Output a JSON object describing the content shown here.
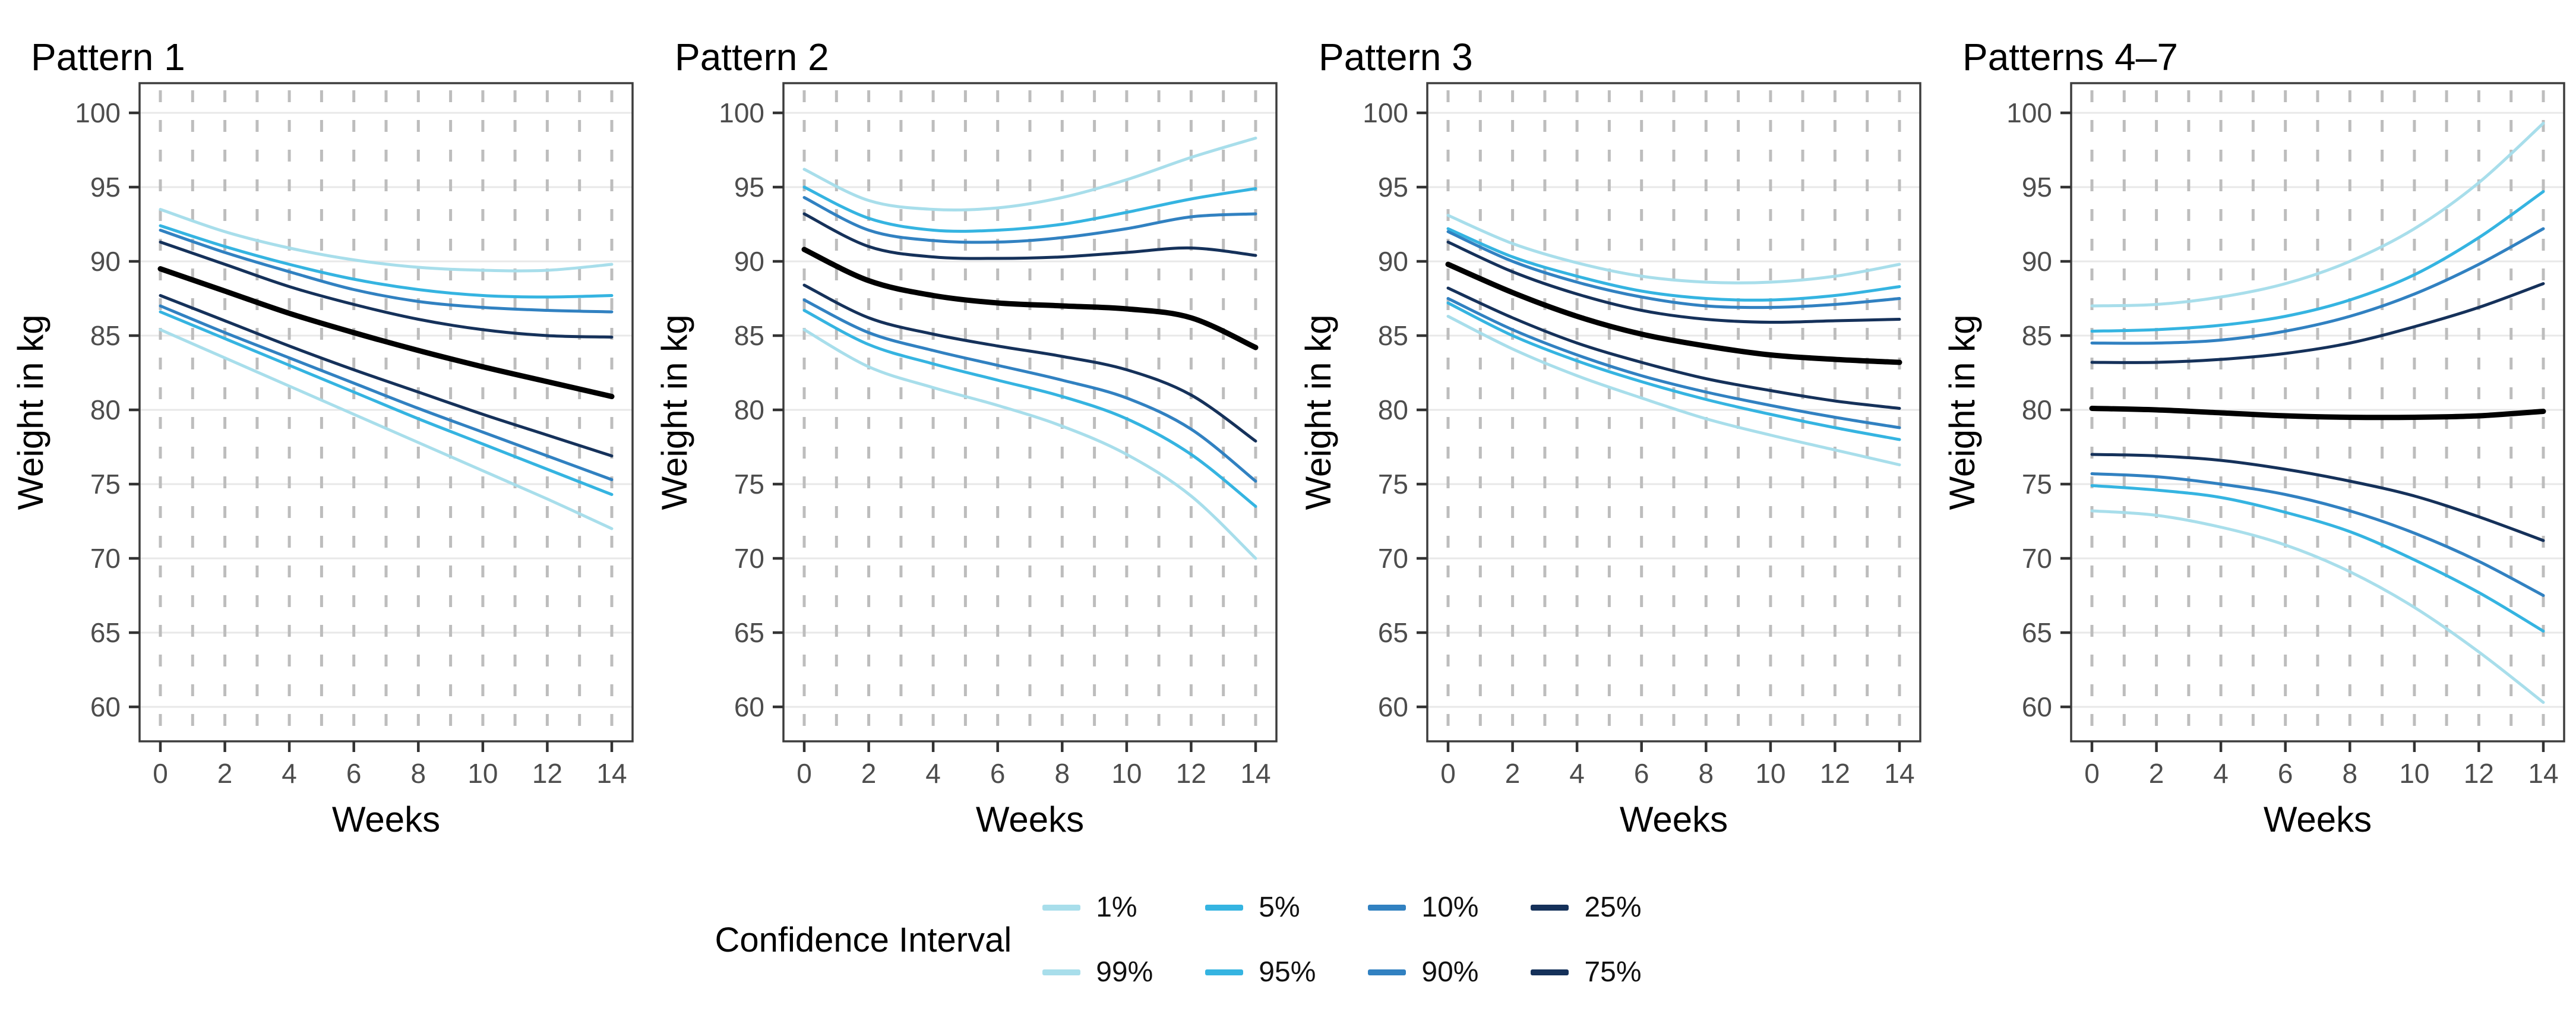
{
  "page": {
    "background": "#ffffff"
  },
  "legend": {
    "title": "Confidence Interval",
    "items": [
      {
        "label": "1%",
        "color": "ci_1_99"
      },
      {
        "label": "5%",
        "color": "ci_5_95"
      },
      {
        "label": "10%",
        "color": "ci_10_90"
      },
      {
        "label": "25%",
        "color": "ci_25_75"
      },
      {
        "label": "99%",
        "color": "ci_1_99"
      },
      {
        "label": "95%",
        "color": "ci_5_95"
      },
      {
        "label": "90%",
        "color": "ci_10_90"
      },
      {
        "label": "75%",
        "color": "ci_25_75"
      }
    ]
  },
  "chart_data": {
    "type": "line",
    "title": "",
    "xlabel": "Weeks",
    "ylabel": "Weight in kg",
    "x": [
      0,
      2,
      4,
      6,
      8,
      10,
      12,
      14
    ],
    "xlim": [
      0,
      14
    ],
    "ylim": [
      60,
      100
    ],
    "x_ticks": [
      0,
      2,
      4,
      6,
      8,
      10,
      12,
      14
    ],
    "y_ticks": [
      60,
      65,
      70,
      75,
      80,
      85,
      90,
      95,
      100
    ],
    "grid": {
      "horizontal_color": "#e8e8e8",
      "vertical_color": "#bdbdbd",
      "vertical_style": "dashed",
      "vertical_at_every_week": true
    },
    "axis": {
      "border_color": "#3d3d3d",
      "tick_color": "#333333",
      "tick_label_color": "#4d4d4d"
    },
    "palette": {
      "ci_1_99": "#a8deeb",
      "ci_5_95": "#35b4e1",
      "ci_10_90": "#3181c1",
      "ci_25_75": "#15315a",
      "median": "#000000"
    },
    "legend_position": "bottom",
    "panels": [
      {
        "title": "Pattern 1",
        "series": [
          {
            "name": "99%",
            "color": "ci_1_99",
            "values": [
              93.5,
              92.0,
              90.9,
              90.1,
              89.6,
              89.4,
              89.4,
              89.8
            ]
          },
          {
            "name": "95%",
            "color": "ci_5_95",
            "values": [
              92.4,
              91.0,
              89.8,
              88.8,
              88.1,
              87.7,
              87.6,
              87.7
            ]
          },
          {
            "name": "90%",
            "color": "ci_10_90",
            "values": [
              92.1,
              90.6,
              89.3,
              88.1,
              87.3,
              86.9,
              86.7,
              86.6
            ]
          },
          {
            "name": "75%",
            "color": "ci_25_75",
            "values": [
              91.3,
              89.8,
              88.3,
              87.1,
              86.1,
              85.4,
              85.0,
              84.9
            ]
          },
          {
            "name": "25%",
            "color": "ci_25_75",
            "values": [
              87.7,
              86.0,
              84.3,
              82.7,
              81.2,
              79.7,
              78.3,
              76.9
            ]
          },
          {
            "name": "10%",
            "color": "ci_10_90",
            "values": [
              87.0,
              85.2,
              83.5,
              81.8,
              80.1,
              78.5,
              76.9,
              75.3
            ]
          },
          {
            "name": "5%",
            "color": "ci_5_95",
            "values": [
              86.6,
              84.8,
              83.0,
              81.2,
              79.4,
              77.7,
              76.0,
              74.3
            ]
          },
          {
            "name": "1%",
            "color": "ci_1_99",
            "values": [
              85.4,
              83.5,
              81.6,
              79.7,
              77.8,
              75.9,
              74.0,
              72.0
            ]
          },
          {
            "name": "median",
            "color": "median",
            "values": [
              89.5,
              88.0,
              86.5,
              85.2,
              84.0,
              82.9,
              81.9,
              80.9
            ]
          }
        ]
      },
      {
        "title": "Pattern 2",
        "series": [
          {
            "name": "99%",
            "color": "ci_1_99",
            "values": [
              96.2,
              94.1,
              93.5,
              93.6,
              94.3,
              95.5,
              97.0,
              98.3
            ]
          },
          {
            "name": "95%",
            "color": "ci_5_95",
            "values": [
              95.0,
              92.9,
              92.1,
              92.1,
              92.5,
              93.3,
              94.2,
              94.9
            ]
          },
          {
            "name": "90%",
            "color": "ci_10_90",
            "values": [
              94.3,
              92.1,
              91.4,
              91.3,
              91.6,
              92.2,
              93.0,
              93.2
            ]
          },
          {
            "name": "75%",
            "color": "ci_25_75",
            "values": [
              93.2,
              91.0,
              90.3,
              90.2,
              90.3,
              90.6,
              90.9,
              90.4
            ]
          },
          {
            "name": "25%",
            "color": "ci_25_75",
            "values": [
              88.4,
              86.2,
              85.1,
              84.3,
              83.6,
              82.7,
              81.0,
              77.9
            ]
          },
          {
            "name": "10%",
            "color": "ci_10_90",
            "values": [
              87.4,
              85.2,
              84.0,
              83.0,
              82.0,
              80.8,
              78.7,
              75.2
            ]
          },
          {
            "name": "5%",
            "color": "ci_5_95",
            "values": [
              86.7,
              84.4,
              83.1,
              82.0,
              80.9,
              79.4,
              77.0,
              73.5
            ]
          },
          {
            "name": "1%",
            "color": "ci_1_99",
            "values": [
              85.4,
              82.9,
              81.5,
              80.3,
              78.9,
              77.0,
              74.2,
              70.0
            ]
          },
          {
            "name": "median",
            "color": "median",
            "values": [
              90.8,
              88.7,
              87.7,
              87.2,
              87.0,
              86.8,
              86.2,
              84.2
            ]
          }
        ]
      },
      {
        "title": "Pattern 3",
        "series": [
          {
            "name": "99%",
            "color": "ci_1_99",
            "values": [
              93.1,
              91.2,
              89.9,
              89.0,
              88.6,
              88.6,
              89.0,
              89.8
            ]
          },
          {
            "name": "95%",
            "color": "ci_5_95",
            "values": [
              92.2,
              90.3,
              89.0,
              88.0,
              87.5,
              87.4,
              87.7,
              88.3
            ]
          },
          {
            "name": "90%",
            "color": "ci_10_90",
            "values": [
              92.0,
              90.0,
              88.6,
              87.6,
              87.0,
              86.9,
              87.1,
              87.5
            ]
          },
          {
            "name": "75%",
            "color": "ci_25_75",
            "values": [
              91.3,
              89.3,
              87.8,
              86.7,
              86.1,
              85.9,
              86.0,
              86.1
            ]
          },
          {
            "name": "25%",
            "color": "ci_25_75",
            "values": [
              88.2,
              86.2,
              84.5,
              83.2,
              82.1,
              81.3,
              80.6,
              80.1
            ]
          },
          {
            "name": "10%",
            "color": "ci_10_90",
            "values": [
              87.5,
              85.4,
              83.7,
              82.3,
              81.2,
              80.3,
              79.5,
              78.8
            ]
          },
          {
            "name": "5%",
            "color": "ci_5_95",
            "values": [
              87.2,
              85.0,
              83.3,
              81.9,
              80.7,
              79.7,
              78.8,
              78.0
            ]
          },
          {
            "name": "1%",
            "color": "ci_1_99",
            "values": [
              86.3,
              84.1,
              82.3,
              80.8,
              79.4,
              78.3,
              77.3,
              76.3
            ]
          },
          {
            "name": "median",
            "color": "median",
            "values": [
              89.8,
              87.9,
              86.3,
              85.1,
              84.3,
              83.7,
              83.4,
              83.2
            ]
          }
        ]
      },
      {
        "title": "Patterns 4–7",
        "series": [
          {
            "name": "99%",
            "color": "ci_1_99",
            "values": [
              87.0,
              87.1,
              87.6,
              88.5,
              90.0,
              92.2,
              95.3,
              99.3
            ]
          },
          {
            "name": "95%",
            "color": "ci_5_95",
            "values": [
              85.3,
              85.4,
              85.7,
              86.3,
              87.4,
              89.1,
              91.6,
              94.7
            ]
          },
          {
            "name": "90%",
            "color": "ci_10_90",
            "values": [
              84.5,
              84.5,
              84.7,
              85.3,
              86.3,
              87.8,
              89.8,
              92.2
            ]
          },
          {
            "name": "75%",
            "color": "ci_25_75",
            "values": [
              83.2,
              83.2,
              83.4,
              83.8,
              84.5,
              85.6,
              86.9,
              88.5
            ]
          },
          {
            "name": "25%",
            "color": "ci_25_75",
            "values": [
              77.0,
              76.9,
              76.6,
              76.0,
              75.2,
              74.2,
              72.8,
              71.2
            ]
          },
          {
            "name": "10%",
            "color": "ci_10_90",
            "values": [
              75.7,
              75.5,
              75.0,
              74.3,
              73.2,
              71.7,
              69.8,
              67.5
            ]
          },
          {
            "name": "5%",
            "color": "ci_5_95",
            "values": [
              74.9,
              74.6,
              74.1,
              73.1,
              71.8,
              69.9,
              67.7,
              65.1
            ]
          },
          {
            "name": "1%",
            "color": "ci_1_99",
            "values": [
              73.2,
              72.9,
              72.1,
              70.9,
              69.1,
              66.7,
              63.7,
              60.3
            ]
          },
          {
            "name": "median",
            "color": "median",
            "values": [
              80.1,
              80.0,
              79.8,
              79.6,
              79.5,
              79.5,
              79.6,
              79.9
            ]
          }
        ]
      }
    ]
  }
}
